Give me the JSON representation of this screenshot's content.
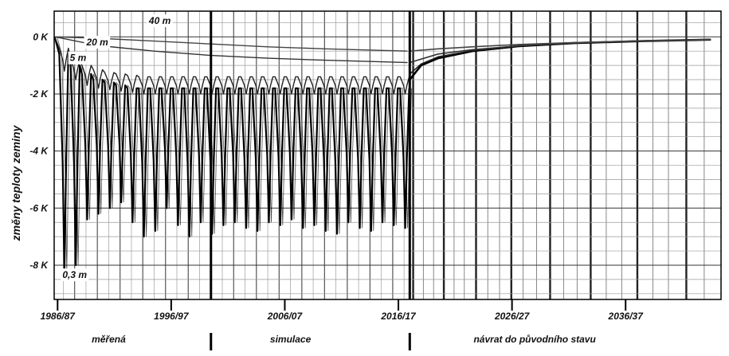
{
  "chart_data": {
    "type": "line",
    "title": "",
    "xlabel": "",
    "ylabel": "změny teploty zeminy",
    "ylim": [
      -9.2,
      0.9
    ],
    "xlim": [
      1986.2,
      2044.9
    ],
    "y_ticks": [
      {
        "value": 0,
        "label": "0 K"
      },
      {
        "value": -2,
        "label": "-2 K"
      },
      {
        "value": -4,
        "label": "-4 K"
      },
      {
        "value": -6,
        "label": "-6 K"
      },
      {
        "value": -8,
        "label": "-8 K"
      }
    ],
    "x_ticks": [
      {
        "value": 1986.5,
        "label": "1986/87"
      },
      {
        "value": 1996.5,
        "label": "1996/97"
      },
      {
        "value": 2006.5,
        "label": "2006/07"
      },
      {
        "value": 2016.5,
        "label": "2016/17"
      },
      {
        "value": 2026.5,
        "label": "2026/27"
      },
      {
        "value": 2036.5,
        "label": "2036/37"
      }
    ],
    "phase_boundaries": [
      2000.0,
      2017.5
    ],
    "phases": [
      {
        "label": "měřená",
        "x": 1991.0
      },
      {
        "label": "simulace",
        "x": 2007.0
      },
      {
        "label": "návrat do původního stavu",
        "x": 2028.5
      }
    ],
    "grid": true,
    "annotations": [
      {
        "text": "40 m",
        "x": 1995.5,
        "y": 0.45
      },
      {
        "text": "20 m",
        "x": 1990.0,
        "y": -0.3
      },
      {
        "text": "5 m",
        "x": 1988.3,
        "y": -0.85
      },
      {
        "text": "0,3 m",
        "x": 1988.0,
        "y": -8.45
      }
    ],
    "series": [
      {
        "name": "0,3 m",
        "color": "#000000",
        "periodic": {
          "x_start": 1986.5,
          "x_end": 2017.4,
          "period": 1.0,
          "summer": [
            -0.6,
            -1.0,
            -1.3,
            -1.5,
            -1.6,
            -1.7,
            -1.8,
            -1.8
          ],
          "winter": [
            -8.3,
            -8.0,
            -6.4,
            -6.2,
            -6.0,
            -5.8,
            -6.5,
            -7.0,
            -6.8,
            -6.0,
            -6.6,
            -7.0,
            -6.5,
            -6.9,
            -6.6,
            -6.5,
            -6.7,
            -6.8,
            -6.5,
            -6.6,
            -6.4,
            -6.7,
            -6.6,
            -6.8,
            -6.9,
            -6.5,
            -6.7,
            -6.8,
            -6.5,
            -6.6,
            -6.7
          ]
        },
        "recovery": [
          [
            2017.5,
            -1.5
          ],
          [
            2018.5,
            -1.0
          ],
          [
            2020,
            -0.75
          ],
          [
            2023,
            -0.5
          ],
          [
            2027,
            -0.33
          ],
          [
            2032,
            -0.22
          ],
          [
            2038,
            -0.15
          ],
          [
            2044,
            -0.1
          ]
        ]
      },
      {
        "name": "5 m",
        "color": "#222222",
        "periodic": {
          "x_start": 1986.5,
          "x_end": 2017.4,
          "period": 1.0,
          "summer": [
            -0.4,
            -0.8,
            -1.0,
            -1.15,
            -1.25,
            -1.3,
            -1.35,
            -1.4
          ],
          "winter": [
            -1.2,
            -1.5,
            -1.7,
            -1.8,
            -1.85,
            -1.9,
            -1.95,
            -2.0
          ]
        },
        "recovery": [
          [
            2017.5,
            -1.3
          ],
          [
            2018.5,
            -0.95
          ],
          [
            2020,
            -0.7
          ],
          [
            2023,
            -0.48
          ],
          [
            2027,
            -0.32
          ],
          [
            2032,
            -0.21
          ],
          [
            2038,
            -0.14
          ],
          [
            2044,
            -0.1
          ]
        ]
      },
      {
        "name": "20 m",
        "color": "#333333",
        "line": [
          [
            1986.3,
            0
          ],
          [
            1990,
            -0.3
          ],
          [
            1995,
            -0.5
          ],
          [
            2000,
            -0.65
          ],
          [
            2005,
            -0.75
          ],
          [
            2010,
            -0.82
          ],
          [
            2017.3,
            -0.9
          ]
        ],
        "recovery": [
          [
            2017.5,
            -0.9
          ],
          [
            2020,
            -0.6
          ],
          [
            2023,
            -0.45
          ],
          [
            2027,
            -0.32
          ],
          [
            2032,
            -0.21
          ],
          [
            2038,
            -0.15
          ],
          [
            2044,
            -0.1
          ]
        ]
      },
      {
        "name": "40 m",
        "color": "#444444",
        "line": [
          [
            1986.3,
            0
          ],
          [
            1990,
            -0.05
          ],
          [
            1995,
            -0.15
          ],
          [
            2000,
            -0.25
          ],
          [
            2005,
            -0.35
          ],
          [
            2010,
            -0.42
          ],
          [
            2017.3,
            -0.5
          ]
        ],
        "recovery": [
          [
            2017.5,
            -0.5
          ],
          [
            2020,
            -0.42
          ],
          [
            2023,
            -0.35
          ],
          [
            2027,
            -0.27
          ],
          [
            2032,
            -0.2
          ],
          [
            2038,
            -0.14
          ],
          [
            2044,
            -0.1
          ]
        ]
      }
    ]
  }
}
